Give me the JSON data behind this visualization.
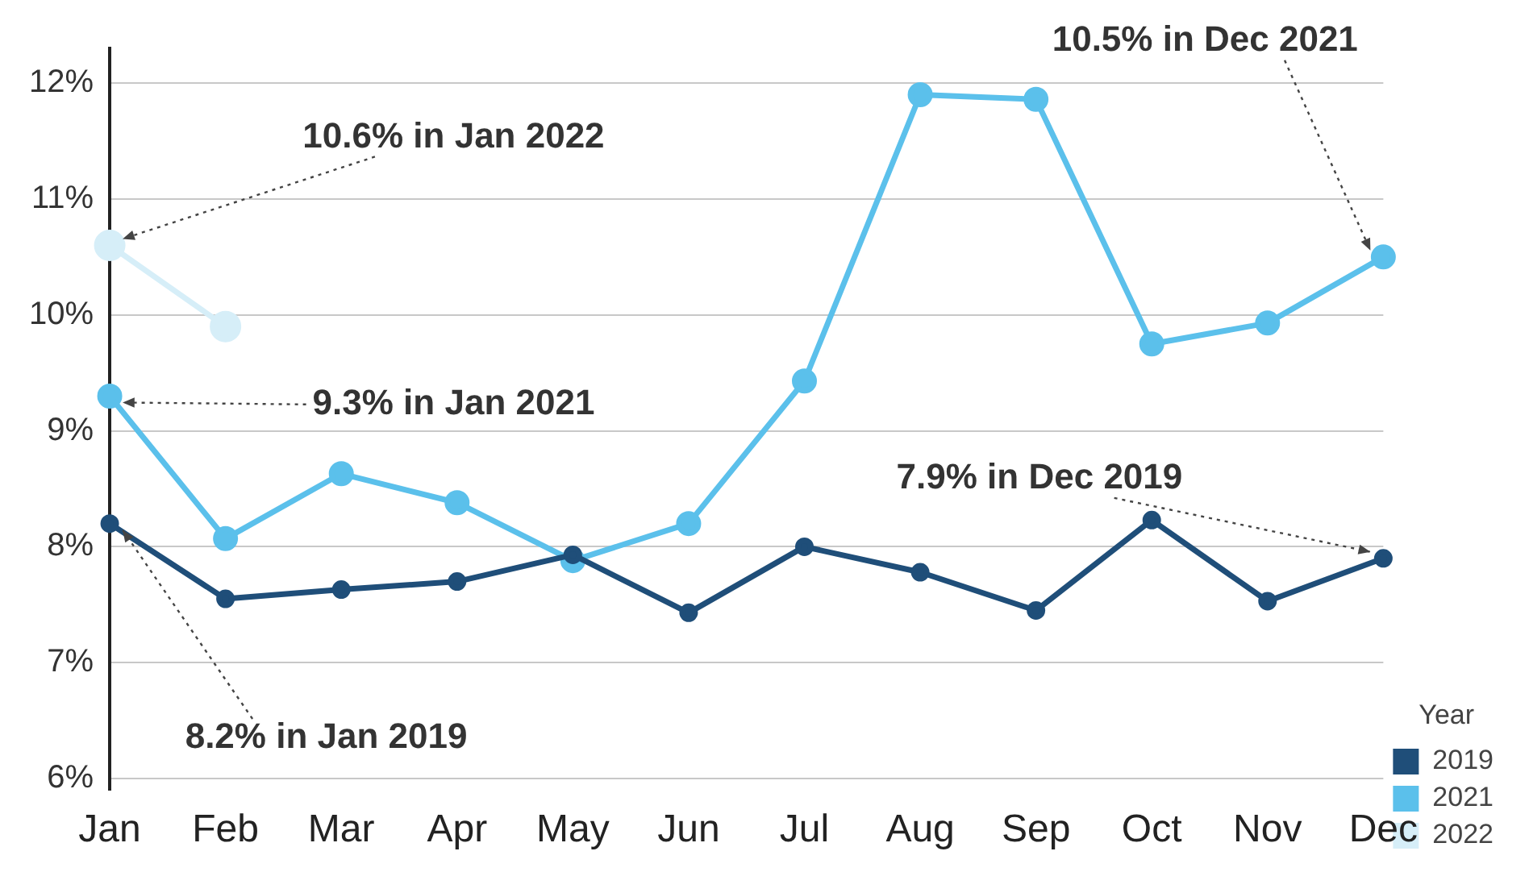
{
  "chart_data": {
    "type": "line",
    "categories": [
      "Jan",
      "Feb",
      "Mar",
      "Apr",
      "May",
      "Jun",
      "Jul",
      "Aug",
      "Sep",
      "Oct",
      "Nov",
      "Dec"
    ],
    "series": [
      {
        "name": "2019",
        "color": "#1f4e79",
        "values": [
          8.2,
          7.55,
          7.63,
          7.7,
          7.93,
          7.43,
          8.0,
          7.78,
          7.45,
          8.23,
          7.53,
          7.9
        ]
      },
      {
        "name": "2021",
        "color": "#5bc0eb",
        "values": [
          9.3,
          8.07,
          8.63,
          8.38,
          7.88,
          8.2,
          9.43,
          11.9,
          11.86,
          9.75,
          9.93,
          10.5
        ]
      },
      {
        "name": "2022",
        "color": "#d6eef8",
        "values": [
          10.6,
          9.9,
          null,
          null,
          null,
          null,
          null,
          null,
          null,
          null,
          null,
          null
        ]
      }
    ],
    "ylim": [
      5.9,
      12.3
    ],
    "yticks": [
      {
        "value": 6,
        "label": "6%"
      },
      {
        "value": 7,
        "label": "7%"
      },
      {
        "value": 8,
        "label": "8%"
      },
      {
        "value": 9,
        "label": "9%"
      },
      {
        "value": 10,
        "label": "10%"
      },
      {
        "value": 11,
        "label": "11%"
      },
      {
        "value": 12,
        "label": "12%"
      }
    ],
    "grid": "y",
    "legend": "bottom right",
    "legend_title": "Year",
    "marker": "circle",
    "line_style": "solid",
    "annotations": [
      {
        "text": "10.6% in Jan 2022",
        "x": "Jan",
        "y": 10.6
      },
      {
        "text": "9.3% in Jan 2021",
        "x": "Jan",
        "y": 9.3
      },
      {
        "text": "8.2% in Jan 2019",
        "x": "Jan",
        "y": 8.2
      },
      {
        "text": "10.5% in Dec 2021",
        "x": "Dec",
        "y": 10.5
      },
      {
        "text": "7.9% in Dec 2019",
        "x": "Dec",
        "y": 7.9
      }
    ]
  }
}
